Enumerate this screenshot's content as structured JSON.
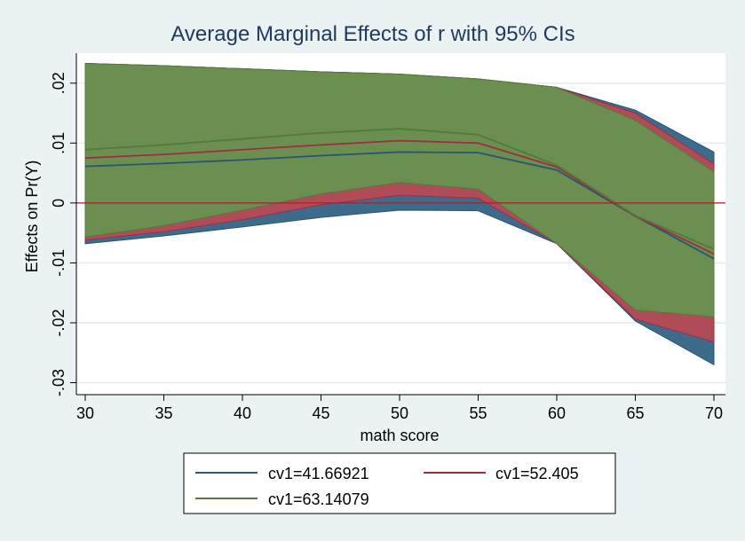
{
  "chart_data": {
    "type": "area",
    "title": "Average Marginal Effects of r with 95% CIs",
    "xlabel": "math score",
    "ylabel": "Effects on Pr(Y)",
    "x": [
      30,
      35,
      40,
      45,
      50,
      55,
      60,
      65,
      70
    ],
    "xlim": [
      30,
      70
    ],
    "ylim": [
      -0.032,
      0.025
    ],
    "xticks": [
      30,
      35,
      40,
      45,
      50,
      55,
      60,
      65,
      70
    ],
    "xtick_labels": [
      "30",
      "35",
      "40",
      "45",
      "50",
      "55",
      "60",
      "65",
      "70"
    ],
    "yticks": [
      -0.03,
      -0.02,
      -0.01,
      0,
      0.01,
      0.02
    ],
    "ytick_labels": [
      "-.03",
      "-.02",
      "-.01",
      "0",
      ".01",
      ".02"
    ],
    "reference_line": 0,
    "series": [
      {
        "name": "cv1=41.66921",
        "color": "#2a5474",
        "fill": "#3d6b8c",
        "values": [
          0.0061,
          0.0066,
          0.0072,
          0.0079,
          0.0085,
          0.0084,
          0.0055,
          -0.0022,
          -0.0093
        ],
        "ci_low": [
          -0.0068,
          -0.0055,
          -0.004,
          -0.0024,
          -0.0012,
          -0.0013,
          -0.0068,
          -0.0197,
          -0.027
        ],
        "ci_high": [
          0.0233,
          0.0229,
          0.0224,
          0.0219,
          0.0215,
          0.0207,
          0.0193,
          0.0155,
          0.0085
        ]
      },
      {
        "name": "cv1=52.405",
        "color": "#9e2f3f",
        "fill": "#b04b58",
        "values": [
          0.0075,
          0.0081,
          0.0089,
          0.0097,
          0.0104,
          0.01,
          0.006,
          -0.0022,
          -0.0085
        ],
        "ci_low": [
          -0.0062,
          -0.0048,
          -0.0028,
          -0.0003,
          0.0013,
          0.0008,
          -0.0068,
          -0.0194,
          -0.0232
        ],
        "ci_high": [
          0.0233,
          0.0229,
          0.0224,
          0.0219,
          0.0215,
          0.0207,
          0.0193,
          0.015,
          0.0065
        ]
      },
      {
        "name": "cv1=63.14079",
        "color": "#527a3a",
        "fill": "#6b8f50",
        "values": [
          0.0089,
          0.0097,
          0.0107,
          0.0117,
          0.0124,
          0.0114,
          0.0063,
          -0.0021,
          -0.0077
        ],
        "ci_low": [
          -0.0057,
          -0.0038,
          -0.0012,
          0.0015,
          0.0034,
          0.0023,
          -0.0068,
          -0.0179,
          -0.019
        ],
        "ci_high": [
          0.0233,
          0.0229,
          0.0224,
          0.0219,
          0.0215,
          0.0207,
          0.0193,
          0.0138,
          0.0052
        ]
      }
    ],
    "legend_position": "bottom"
  }
}
